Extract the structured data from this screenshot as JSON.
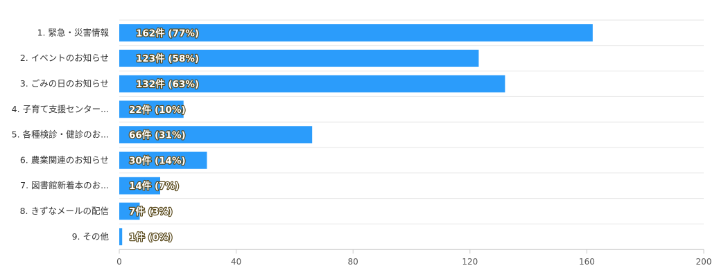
{
  "chart_data": {
    "type": "bar",
    "orientation": "horizontal",
    "categories": [
      "1. 緊急・災害情報",
      "2. イベントのお知らせ",
      "3. ごみの日のお知らせ",
      "4. 子育て支援センター...",
      "5. 各種検診・健診のお...",
      "6. 農業関連のお知らせ",
      "7. 図書館新着本のお...",
      "8. きずなメールの配信",
      "9. その他"
    ],
    "values": [
      162,
      123,
      132,
      22,
      66,
      30,
      14,
      7,
      1
    ],
    "data_labels": [
      "162件 (77%)",
      "123件 (58%)",
      "132件 (63%)",
      "22件 (10%)",
      "66件 (31%)",
      "30件 (14%)",
      "14件 (7%)",
      "7件 (3%)",
      "1件 (0%)"
    ],
    "xlim": [
      0,
      200
    ],
    "xticks": [
      0,
      40,
      80,
      120,
      160,
      200
    ],
    "xtick_labels": [
      "0",
      "40",
      "80",
      "120",
      "160",
      "200"
    ],
    "grid": true,
    "legend": "none",
    "bar_color": "#2b9cfb"
  }
}
